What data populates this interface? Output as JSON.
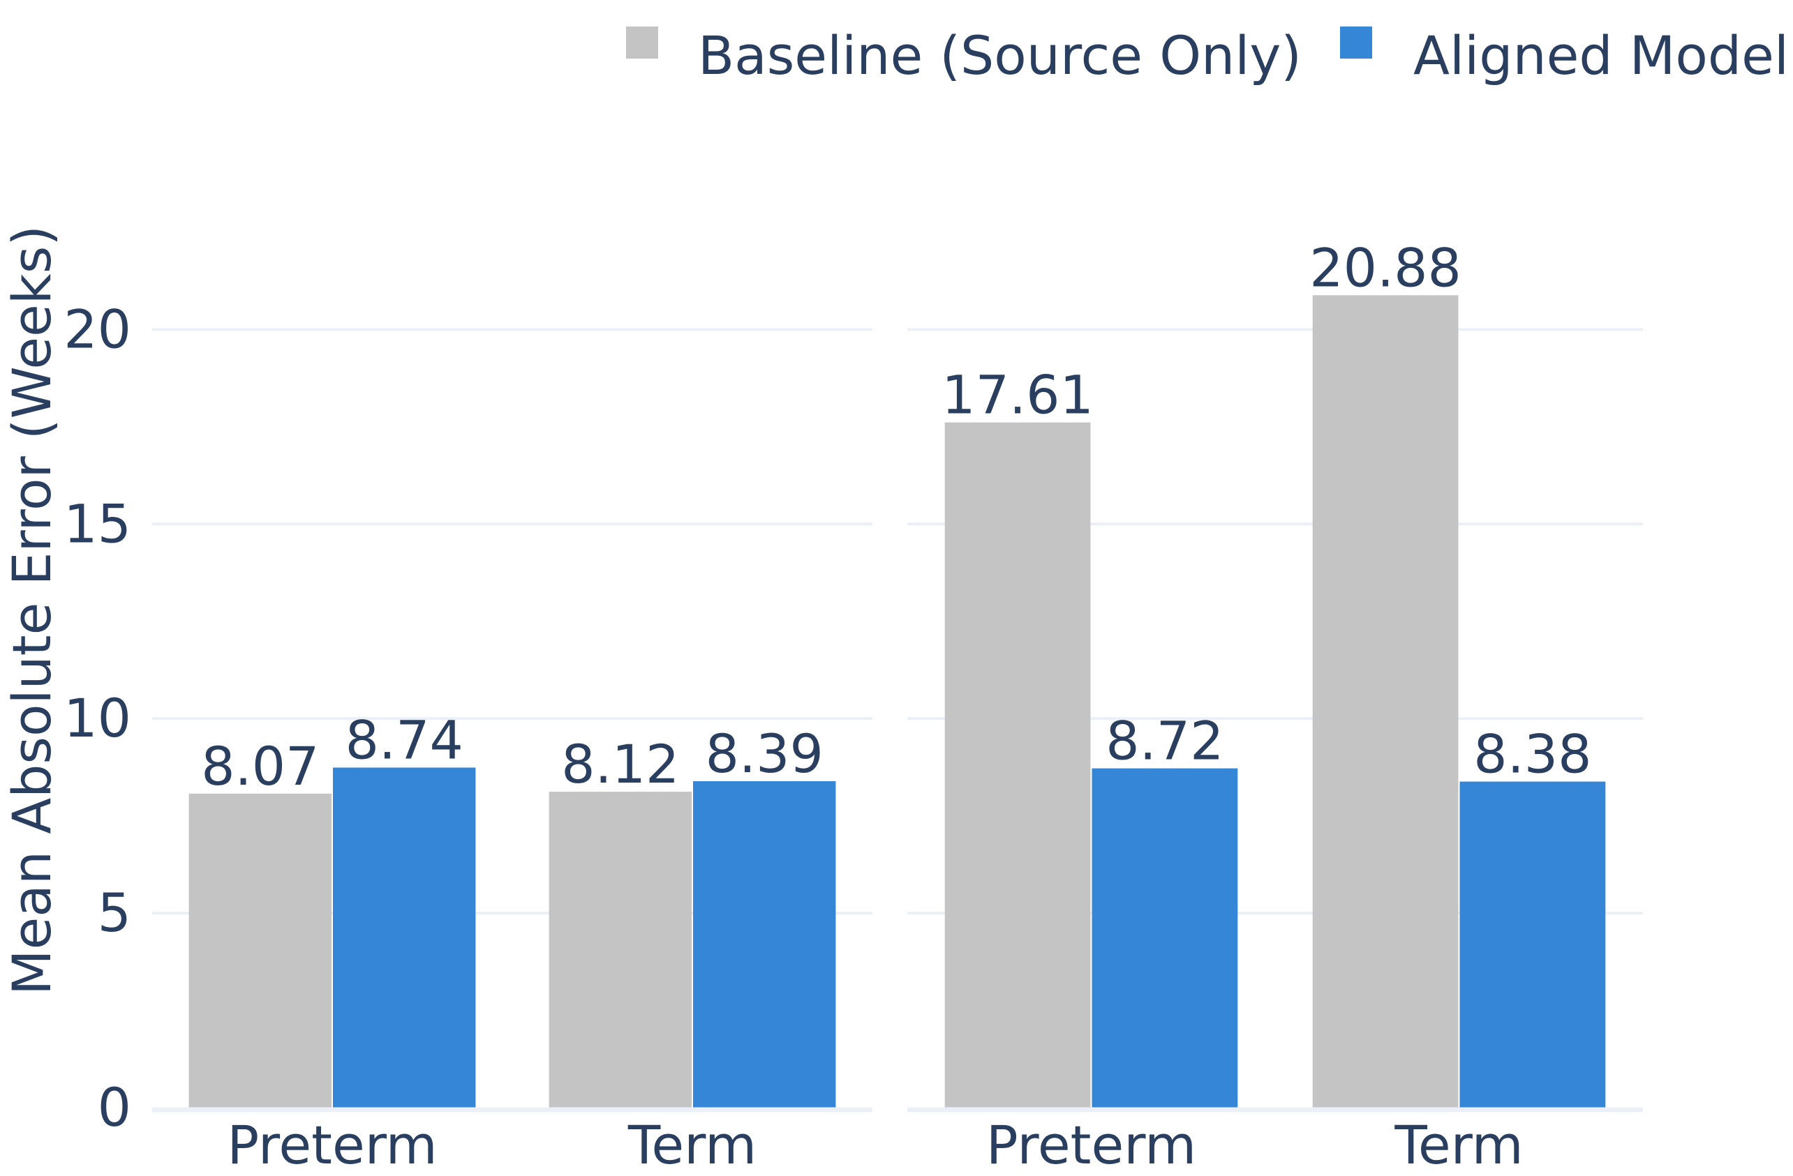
{
  "chart_data": {
    "type": "bar",
    "ylabel": "Mean Absolute Error (Weeks)",
    "ylim": [
      0,
      23
    ],
    "yticks": [
      0,
      5,
      10,
      15,
      20
    ],
    "grid": true,
    "legend_position": "top-right",
    "series_colors": [
      "#c4c4c4",
      "#3586d6"
    ],
    "panels": [
      {
        "categories": [
          "Preterm",
          "Term"
        ],
        "series": [
          {
            "name": "Baseline (Source Only)",
            "values": [
              8.07,
              8.12
            ],
            "labels": [
              "8.07",
              "8.12"
            ]
          },
          {
            "name": "Aligned Model",
            "values": [
              8.74,
              8.39
            ],
            "labels": [
              "8.74",
              "8.39"
            ]
          }
        ]
      },
      {
        "categories": [
          "Preterm",
          "Term"
        ],
        "series": [
          {
            "name": "Baseline (Source Only)",
            "values": [
              17.61,
              20.88
            ],
            "labels": [
              "17.61",
              "20.88"
            ]
          },
          {
            "name": "Aligned Model",
            "values": [
              8.72,
              8.38
            ],
            "labels": [
              "8.72",
              "8.38"
            ]
          }
        ]
      }
    ]
  }
}
